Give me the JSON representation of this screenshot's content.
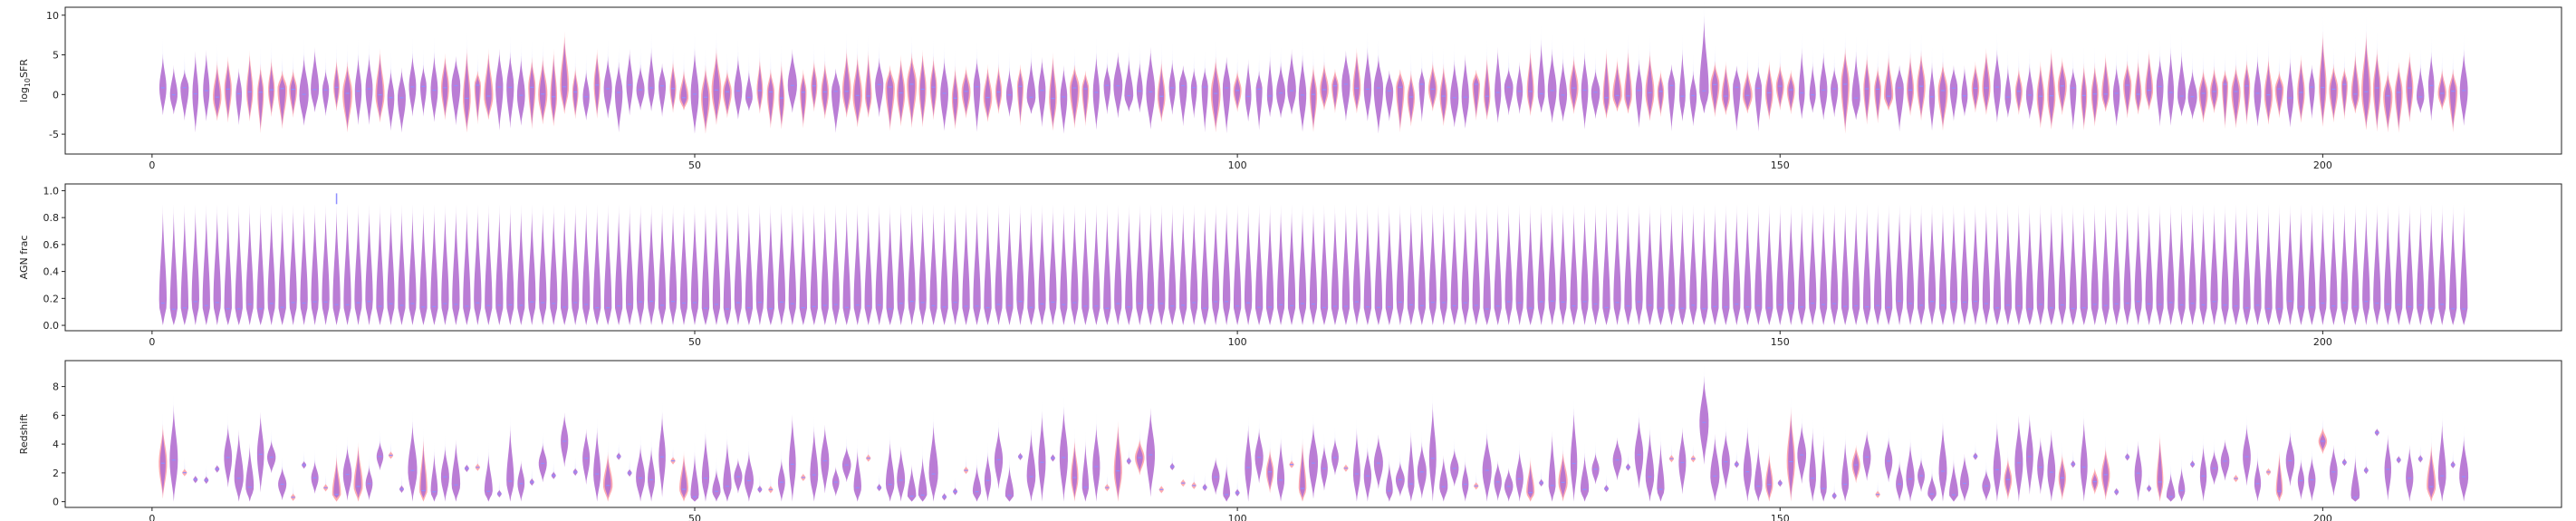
{
  "figure": {
    "colors": {
      "pink": "#ff8f95",
      "blue": "#8f8fff",
      "purple": "#b36fd0"
    },
    "n_objects": 213
  },
  "chart_data": [
    {
      "type": "violin",
      "ylabel_main": "log",
      "ylabel_sub": "10",
      "ylabel_rest": "SFR",
      "xlim": [
        -8,
        222
      ],
      "ylim": [
        -7.5,
        11
      ],
      "xticks": [
        0,
        50,
        100,
        150,
        200
      ],
      "yticks": [
        -5,
        0,
        5,
        10
      ],
      "grid": false,
      "x": "1..213 (one violin pair per object)",
      "series": [
        {
          "color_name": "pink"
        },
        {
          "color_name": "blue"
        }
      ],
      "median_y_approx": 0.5,
      "typical_spread": [
        -3,
        4
      ],
      "peaks_max": [
        {
          "x": 38,
          "y": 8
        },
        {
          "x": 128,
          "y": 7
        },
        {
          "x": 143,
          "y": 10
        },
        {
          "x": 200,
          "y": 8
        },
        {
          "x": 204,
          "y": 8
        }
      ]
    },
    {
      "type": "violin",
      "ylabel_main": "AGN frac",
      "xlim": [
        -8,
        222
      ],
      "ylim": [
        -0.04,
        1.05
      ],
      "xticks": [
        0,
        50,
        100,
        150,
        200
      ],
      "yticks": [
        0.0,
        0.2,
        0.4,
        0.6,
        0.8,
        1.0
      ],
      "yticklabels": [
        "0.0",
        "0.2",
        "0.4",
        "0.6",
        "0.8",
        "1.0"
      ],
      "grid": false,
      "x": "1..213",
      "series": [
        {
          "color_name": "pink"
        },
        {
          "color_name": "blue"
        }
      ],
      "typical_range": [
        0.0,
        0.9
      ],
      "outlier": {
        "x": 17,
        "y": 0.98
      }
    },
    {
      "type": "violin",
      "ylabel_main": "Redshift",
      "xlim": [
        -8,
        222
      ],
      "ylim": [
        -0.4,
        9.8
      ],
      "xticks": [
        0,
        50,
        100,
        150,
        200
      ],
      "yticks": [
        0,
        2,
        4,
        6,
        8
      ],
      "grid": false,
      "x": "1..213",
      "series": [
        {
          "color_name": "pink"
        },
        {
          "color_name": "blue"
        }
      ],
      "notable": [
        {
          "x": 38,
          "y": 4.2
        },
        {
          "x": 143,
          "y": 5.5
        },
        {
          "x": 200,
          "y": 4.2
        },
        {
          "x": 205,
          "y": 4.8
        }
      ]
    }
  ]
}
